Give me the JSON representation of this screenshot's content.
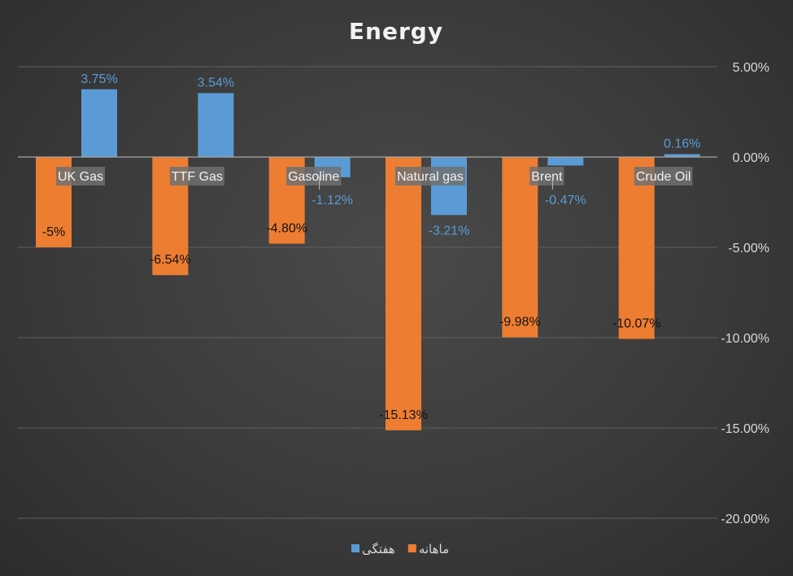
{
  "chart_data": {
    "type": "bar",
    "title": "Energy",
    "categories": [
      "UK Gas",
      "TTF Gas",
      "Gasoline",
      "Natural gas",
      "Brent",
      "Crude Oil"
    ],
    "series": [
      {
        "name": "ماهانه",
        "color": "#ed7d31",
        "values": [
          -5.0,
          -6.54,
          -4.8,
          -15.13,
          -9.98,
          -10.07
        ],
        "labels": [
          "-5%",
          "-6.54%",
          "-4.80%",
          "-15.13%",
          "-9.98%",
          "-10.07%"
        ]
      },
      {
        "name": "هفتگی",
        "color": "#5b9bd5",
        "values": [
          3.75,
          3.54,
          -1.12,
          -3.21,
          -0.47,
          0.16
        ],
        "labels": [
          "3.75%",
          "3.54%",
          "-1.12%",
          "-3.21%",
          "-0.47%",
          "0.16%"
        ]
      }
    ],
    "ylim": [
      -20,
      5
    ],
    "yticks": [
      5,
      0,
      -5,
      -10,
      -15,
      -20
    ],
    "ytick_labels": [
      "5.00%",
      "0.00%",
      "-5.00%",
      "-10.00%",
      "-15.00%",
      "-20.00%"
    ],
    "yaxis_position": "right",
    "grid": true,
    "legend_position": "bottom",
    "legend_order": [
      "هفتگی",
      "ماهانه"
    ]
  }
}
